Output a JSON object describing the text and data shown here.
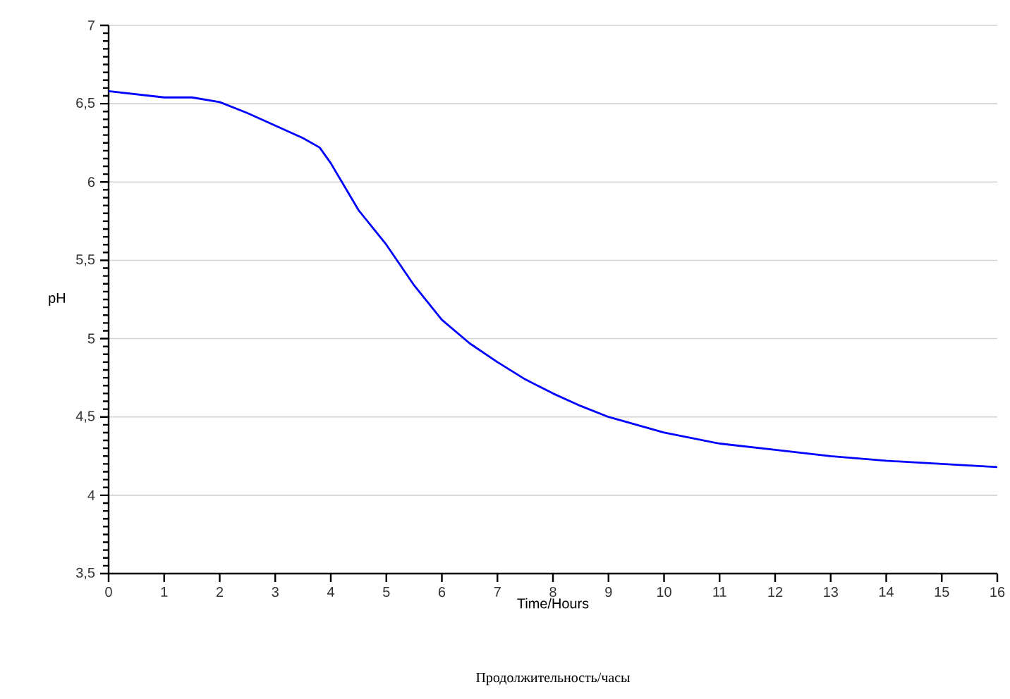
{
  "chart_data": {
    "type": "line",
    "xlabel": "Time/Hours",
    "ylabel": "pH",
    "annotations": [
      "Продолжительность/часы"
    ],
    "x": [
      0,
      0.5,
      1,
      1.5,
      2,
      2.5,
      3,
      3.5,
      3.8,
      4,
      4.2,
      4.5,
      5,
      5.5,
      6,
      6.5,
      7,
      7.5,
      8,
      8.5,
      9,
      10,
      11,
      12,
      13,
      14,
      15,
      16
    ],
    "series": [
      {
        "color": "#0000ff",
        "values": [
          6.58,
          6.56,
          6.54,
          6.54,
          6.51,
          6.44,
          6.36,
          6.28,
          6.22,
          6.12,
          6.0,
          5.82,
          5.6,
          5.34,
          5.12,
          4.97,
          4.85,
          4.74,
          4.65,
          4.57,
          4.5,
          4.4,
          4.33,
          4.29,
          4.25,
          4.22,
          4.2,
          4.18
        ]
      }
    ],
    "xlim": [
      0,
      16
    ],
    "ylim": [
      3.5,
      7
    ],
    "xticks": [
      0,
      1,
      2,
      3,
      4,
      5,
      6,
      7,
      8,
      9,
      10,
      11,
      12,
      13,
      14,
      15,
      16
    ],
    "yticks": [
      {
        "value": 3.5,
        "label": "3,5"
      },
      4,
      {
        "value": 4.5,
        "label": "4,5"
      },
      5,
      {
        "value": 5.5,
        "label": "5,5"
      },
      6,
      {
        "value": 6.5,
        "label": "6,5"
      },
      7
    ],
    "grid": "y",
    "line_style": "solid",
    "marker": "none"
  }
}
